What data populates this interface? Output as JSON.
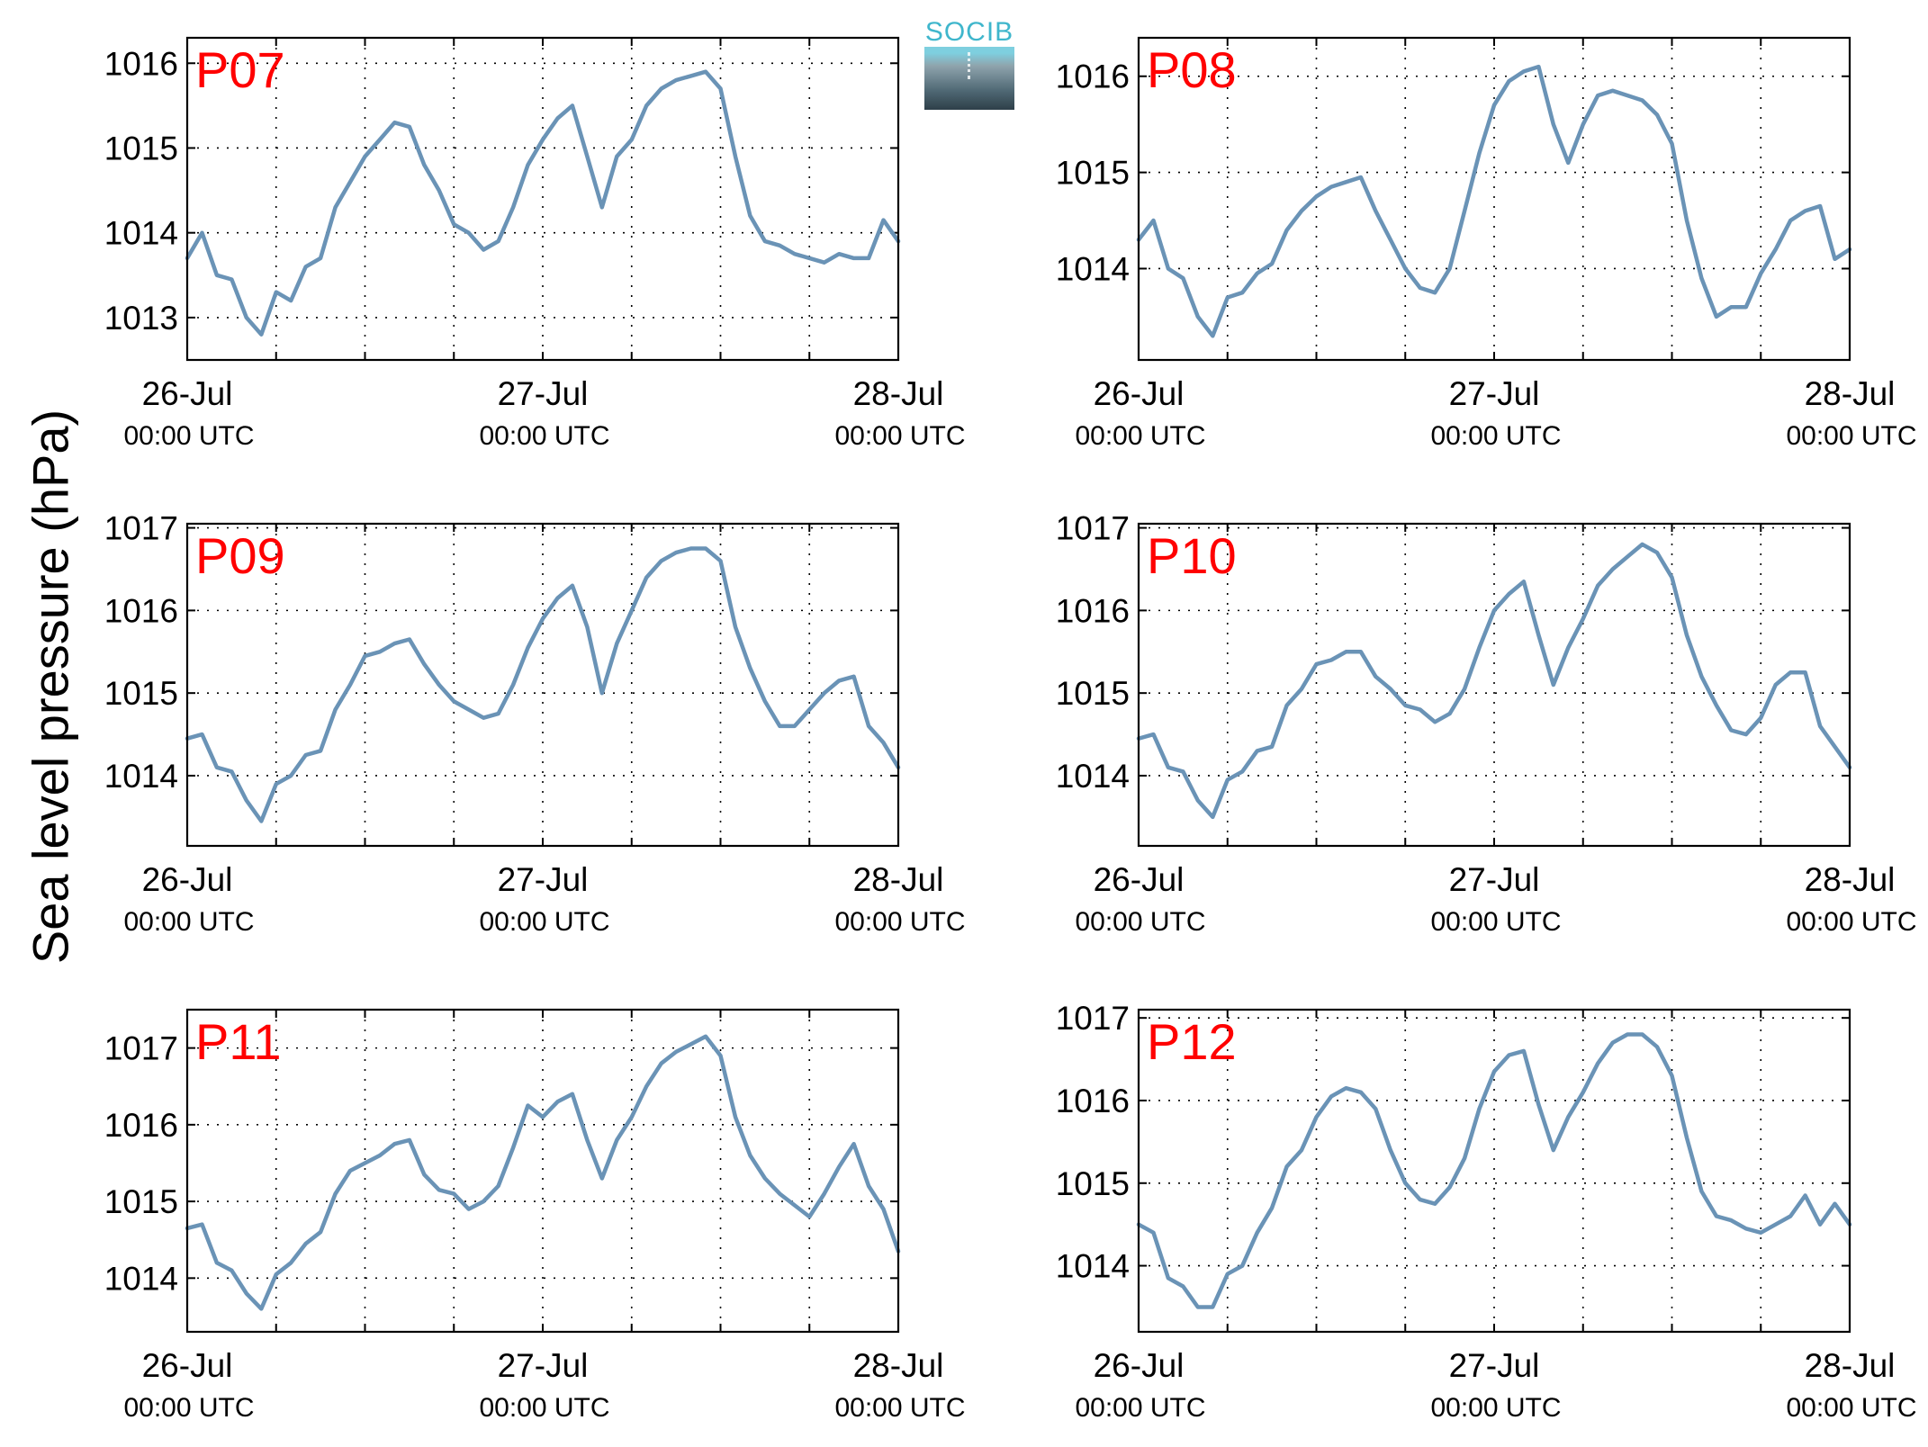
{
  "figure": {
    "ylabel": "Sea level pressure (hPa)",
    "logo_text": "SOCIB",
    "line_color": "#6a93b6",
    "label_color": "#ff0000",
    "grid": "dotted",
    "x_ticks": [
      {
        "day": "26-Jul",
        "time": "00:00 UTC"
      },
      {
        "day": "27-Jul",
        "time": "00:00 UTC"
      },
      {
        "day": "28-Jul",
        "time": "00:00 UTC"
      }
    ]
  },
  "chart_data": [
    {
      "type": "line",
      "name": "P07",
      "ylim": [
        1012.5,
        1016.3
      ],
      "yticks": [
        1013,
        1014,
        1015,
        1016
      ],
      "xlim": [
        "2015-07-26 00:00",
        "2015-07-28 00:00"
      ],
      "x_hours": [
        0,
        1,
        2,
        3,
        4,
        5,
        6,
        7,
        8,
        9,
        10,
        11,
        12,
        13,
        14,
        15,
        16,
        17,
        18,
        19,
        20,
        21,
        22,
        23,
        24,
        25,
        26,
        27,
        28,
        29,
        30,
        31,
        32,
        33,
        34,
        35,
        36,
        37,
        38,
        39,
        40,
        41,
        42,
        43,
        44,
        45,
        46,
        47,
        48
      ],
      "values": [
        1013.7,
        1014.0,
        1013.5,
        1013.45,
        1013.0,
        1012.8,
        1013.3,
        1013.2,
        1013.6,
        1013.7,
        1014.3,
        1014.6,
        1014.9,
        1015.1,
        1015.3,
        1015.25,
        1014.8,
        1014.5,
        1014.1,
        1014.0,
        1013.8,
        1013.9,
        1014.3,
        1014.8,
        1015.1,
        1015.35,
        1015.5,
        1014.9,
        1014.3,
        1014.9,
        1015.1,
        1015.5,
        1015.7,
        1015.8,
        1015.85,
        1015.9,
        1015.7,
        1014.9,
        1014.2,
        1013.9,
        1013.85,
        1013.75,
        1013.7,
        1013.65,
        1013.75,
        1013.7,
        1013.7,
        1014.15,
        1013.9
      ]
    },
    {
      "type": "line",
      "name": "P08",
      "ylim": [
        1013.05,
        1016.4
      ],
      "yticks": [
        1014,
        1015,
        1016
      ],
      "xlim": [
        "2015-07-26 00:00",
        "2015-07-28 00:00"
      ],
      "x_hours": [
        0,
        1,
        2,
        3,
        4,
        5,
        6,
        7,
        8,
        9,
        10,
        11,
        12,
        13,
        14,
        15,
        16,
        17,
        18,
        19,
        20,
        21,
        22,
        23,
        24,
        25,
        26,
        27,
        28,
        29,
        30,
        31,
        32,
        33,
        34,
        35,
        36,
        37,
        38,
        39,
        40,
        41,
        42,
        43,
        44,
        45,
        46,
        47,
        48
      ],
      "values": [
        1014.3,
        1014.5,
        1014.0,
        1013.9,
        1013.5,
        1013.3,
        1013.7,
        1013.75,
        1013.95,
        1014.05,
        1014.4,
        1014.6,
        1014.75,
        1014.85,
        1014.9,
        1014.95,
        1014.6,
        1014.3,
        1014.0,
        1013.8,
        1013.75,
        1014.0,
        1014.6,
        1015.2,
        1015.7,
        1015.95,
        1016.05,
        1016.1,
        1015.5,
        1015.1,
        1015.5,
        1015.8,
        1015.85,
        1015.8,
        1015.75,
        1015.6,
        1015.3,
        1014.5,
        1013.9,
        1013.5,
        1013.6,
        1013.6,
        1013.95,
        1014.2,
        1014.5,
        1014.6,
        1014.65,
        1014.1,
        1014.2
      ]
    },
    {
      "type": "line",
      "name": "P09",
      "ylim": [
        1013.15,
        1017.05
      ],
      "yticks": [
        1014,
        1015,
        1016,
        1017
      ],
      "xlim": [
        "2015-07-26 00:00",
        "2015-07-28 00:00"
      ],
      "x_hours": [
        0,
        1,
        2,
        3,
        4,
        5,
        6,
        7,
        8,
        9,
        10,
        11,
        12,
        13,
        14,
        15,
        16,
        17,
        18,
        19,
        20,
        21,
        22,
        23,
        24,
        25,
        26,
        27,
        28,
        29,
        30,
        31,
        32,
        33,
        34,
        35,
        36,
        37,
        38,
        39,
        40,
        41,
        42,
        43,
        44,
        45,
        46,
        47,
        48
      ],
      "values": [
        1014.45,
        1014.5,
        1014.1,
        1014.05,
        1013.7,
        1013.45,
        1013.9,
        1014.0,
        1014.25,
        1014.3,
        1014.8,
        1015.1,
        1015.45,
        1015.5,
        1015.6,
        1015.65,
        1015.35,
        1015.1,
        1014.9,
        1014.8,
        1014.7,
        1014.75,
        1015.1,
        1015.55,
        1015.9,
        1016.15,
        1016.3,
        1015.8,
        1015.0,
        1015.6,
        1016.0,
        1016.4,
        1016.6,
        1016.7,
        1016.75,
        1016.75,
        1016.6,
        1015.8,
        1015.3,
        1014.9,
        1014.6,
        1014.6,
        1014.8,
        1015.0,
        1015.15,
        1015.2,
        1014.6,
        1014.4,
        1014.1
      ]
    },
    {
      "type": "line",
      "name": "P10",
      "ylim": [
        1013.15,
        1017.05
      ],
      "yticks": [
        1014,
        1015,
        1016,
        1017
      ],
      "xlim": [
        "2015-07-26 00:00",
        "2015-07-28 00:00"
      ],
      "x_hours": [
        0,
        1,
        2,
        3,
        4,
        5,
        6,
        7,
        8,
        9,
        10,
        11,
        12,
        13,
        14,
        15,
        16,
        17,
        18,
        19,
        20,
        21,
        22,
        23,
        24,
        25,
        26,
        27,
        28,
        29,
        30,
        31,
        32,
        33,
        34,
        35,
        36,
        37,
        38,
        39,
        40,
        41,
        42,
        43,
        44,
        45,
        46,
        47,
        48
      ],
      "values": [
        1014.45,
        1014.5,
        1014.1,
        1014.05,
        1013.7,
        1013.5,
        1013.95,
        1014.05,
        1014.3,
        1014.35,
        1014.85,
        1015.05,
        1015.35,
        1015.4,
        1015.5,
        1015.5,
        1015.2,
        1015.05,
        1014.85,
        1014.8,
        1014.65,
        1014.75,
        1015.05,
        1015.55,
        1016.0,
        1016.2,
        1016.35,
        1015.7,
        1015.1,
        1015.55,
        1015.9,
        1016.3,
        1016.5,
        1016.65,
        1016.8,
        1016.7,
        1016.4,
        1015.7,
        1015.2,
        1014.85,
        1014.55,
        1014.5,
        1014.7,
        1015.1,
        1015.25,
        1015.25,
        1014.6,
        1014.35,
        1014.1
      ]
    },
    {
      "type": "line",
      "name": "P11",
      "ylim": [
        1013.3,
        1017.5
      ],
      "yticks": [
        1014,
        1015,
        1016,
        1017
      ],
      "xlim": [
        "2015-07-26 00:00",
        "2015-07-28 00:00"
      ],
      "x_hours": [
        0,
        1,
        2,
        3,
        4,
        5,
        6,
        7,
        8,
        9,
        10,
        11,
        12,
        13,
        14,
        15,
        16,
        17,
        18,
        19,
        20,
        21,
        22,
        23,
        24,
        25,
        26,
        27,
        28,
        29,
        30,
        31,
        32,
        33,
        34,
        35,
        36,
        37,
        38,
        39,
        40,
        41,
        42,
        43,
        44,
        45,
        46,
        47,
        48
      ],
      "values": [
        1014.65,
        1014.7,
        1014.2,
        1014.1,
        1013.8,
        1013.6,
        1014.05,
        1014.2,
        1014.45,
        1014.6,
        1015.1,
        1015.4,
        1015.5,
        1015.6,
        1015.75,
        1015.8,
        1015.35,
        1015.15,
        1015.1,
        1014.9,
        1015.0,
        1015.2,
        1015.7,
        1016.25,
        1016.1,
        1016.3,
        1016.4,
        1015.8,
        1015.3,
        1015.8,
        1016.1,
        1016.5,
        1016.8,
        1016.95,
        1017.05,
        1017.15,
        1016.9,
        1016.1,
        1015.6,
        1015.3,
        1015.1,
        1014.95,
        1014.8,
        1015.1,
        1015.45,
        1015.75,
        1015.2,
        1014.9,
        1014.35
      ]
    },
    {
      "type": "line",
      "name": "P12",
      "ylim": [
        1013.2,
        1017.1
      ],
      "yticks": [
        1014,
        1015,
        1016,
        1017
      ],
      "xlim": [
        "2015-07-26 00:00",
        "2015-07-28 00:00"
      ],
      "x_hours": [
        0,
        1,
        2,
        3,
        4,
        5,
        6,
        7,
        8,
        9,
        10,
        11,
        12,
        13,
        14,
        15,
        16,
        17,
        18,
        19,
        20,
        21,
        22,
        23,
        24,
        25,
        26,
        27,
        28,
        29,
        30,
        31,
        32,
        33,
        34,
        35,
        36,
        37,
        38,
        39,
        40,
        41,
        42,
        43,
        44,
        45,
        46,
        47,
        48
      ],
      "values": [
        1014.5,
        1014.4,
        1013.85,
        1013.75,
        1013.5,
        1013.5,
        1013.9,
        1014.0,
        1014.4,
        1014.7,
        1015.2,
        1015.4,
        1015.8,
        1016.05,
        1016.15,
        1016.1,
        1015.9,
        1015.4,
        1015.0,
        1014.8,
        1014.75,
        1014.95,
        1015.3,
        1015.9,
        1016.35,
        1016.55,
        1016.6,
        1015.95,
        1015.4,
        1015.8,
        1016.1,
        1016.45,
        1016.7,
        1016.8,
        1016.8,
        1016.65,
        1016.3,
        1015.55,
        1014.9,
        1014.6,
        1014.55,
        1014.45,
        1014.4,
        1014.5,
        1014.6,
        1014.85,
        1014.5,
        1014.75,
        1014.5
      ]
    }
  ]
}
